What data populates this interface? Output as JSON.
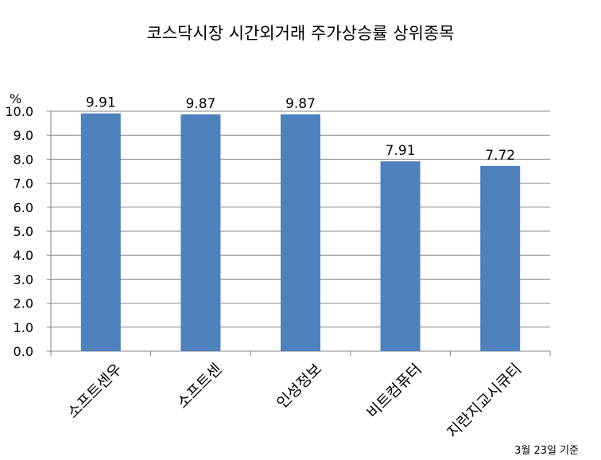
{
  "chart_data": {
    "type": "bar",
    "title": "코스닥시장 시간외거래  주가상승률 상위종목",
    "ylabel": "%",
    "xlabel": "",
    "categories": [
      "소프트센우",
      "소프트센",
      "인성정보",
      "비트컴퓨터",
      "지란지교시큐티"
    ],
    "values": [
      9.91,
      9.87,
      9.87,
      7.91,
      7.72
    ],
    "data_labels": [
      "9.91",
      "9.87",
      "9.87",
      "7.91",
      "7.72"
    ],
    "ylim": [
      0,
      10
    ],
    "yticks": [
      "0.0",
      "1.0",
      "2.0",
      "3.0",
      "4.0",
      "5.0",
      "6.0",
      "7.0",
      "8.0",
      "9.0",
      "10.0"
    ],
    "grid": true,
    "legend": "none",
    "bar_color": "#4f81bd",
    "footnote": "3월 23일 기준"
  }
}
